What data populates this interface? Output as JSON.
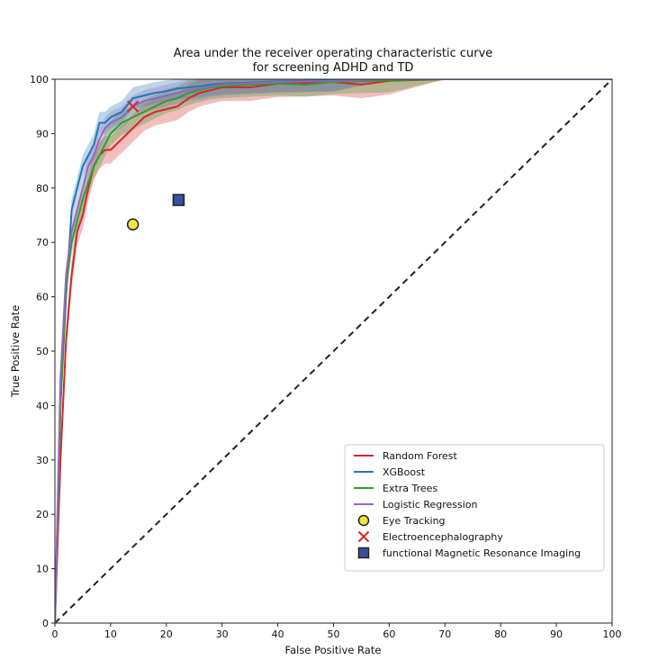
{
  "chart_data": {
    "type": "line",
    "title_line1": "Area under the receiver operating characteristic curve",
    "title_line2": "for screening ADHD and TD",
    "xlabel": "False Positive Rate",
    "ylabel": "True Positive Rate",
    "xlim": [
      0,
      100
    ],
    "ylim": [
      0,
      100
    ],
    "xticks": [
      "0",
      "10",
      "20",
      "30",
      "40",
      "50",
      "60",
      "70",
      "80",
      "90",
      "100"
    ],
    "yticks": [
      "0",
      "10",
      "20",
      "30",
      "40",
      "50",
      "60",
      "70",
      "80",
      "90",
      "100"
    ],
    "grid": false,
    "legend_position": "lower-right",
    "diagonal": {
      "x": [
        0,
        100
      ],
      "y": [
        0,
        100
      ],
      "color": "#222222",
      "style": "dashed"
    },
    "series": [
      {
        "name": "Random Forest",
        "color": "#d62728",
        "x": [
          0,
          1,
          2,
          3,
          4,
          5,
          6,
          7,
          8,
          9,
          10,
          12,
          14,
          16,
          18,
          20,
          22,
          24,
          26,
          28,
          30,
          35,
          40,
          50,
          55,
          60,
          70,
          80,
          100
        ],
        "y": [
          0,
          30,
          52,
          64,
          72,
          75,
          80,
          84,
          86,
          87,
          87,
          89,
          91,
          93,
          94,
          94.5,
          95,
          96.5,
          97.5,
          98,
          98.5,
          98.5,
          99.2,
          99.5,
          99,
          99.7,
          100,
          100,
          100
        ],
        "band": 2.5
      },
      {
        "name": "XGBoost",
        "color": "#1f77b4",
        "x": [
          0,
          1,
          2,
          3,
          4,
          5,
          6,
          7,
          8,
          9,
          10,
          12,
          14,
          16,
          18,
          20,
          22,
          24,
          26,
          28,
          30,
          35,
          40,
          50,
          60,
          70,
          80,
          100
        ],
        "y": [
          0,
          40,
          60,
          76,
          80,
          84,
          86,
          88,
          92,
          92,
          93,
          94,
          96.5,
          97,
          97.5,
          97.8,
          98.3,
          98.5,
          98.7,
          99,
          99.2,
          99.4,
          99.6,
          99.8,
          100,
          100,
          100,
          100
        ],
        "band": 2.0
      },
      {
        "name": "Extra Trees",
        "color": "#2ca02c",
        "x": [
          0,
          1,
          2,
          3,
          4,
          5,
          6,
          7,
          8,
          9,
          10,
          12,
          14,
          16,
          18,
          20,
          22,
          24,
          26,
          28,
          30,
          35,
          40,
          45,
          50,
          60,
          70,
          80,
          100
        ],
        "y": [
          0,
          40,
          62,
          70,
          74,
          78,
          81,
          84,
          86,
          88,
          90,
          92,
          93,
          94,
          95,
          96,
          96.5,
          97.5,
          98,
          98.5,
          98.7,
          99,
          99.2,
          99,
          99.5,
          99.8,
          100,
          100,
          100
        ],
        "band": 2.2
      },
      {
        "name": "Logistic Regression",
        "color": "#9467bd",
        "x": [
          0,
          1,
          2,
          3,
          4,
          5,
          6,
          7,
          8,
          9,
          10,
          12,
          14,
          16,
          18,
          20,
          22,
          24,
          26,
          28,
          30,
          35,
          40,
          50,
          60,
          70,
          80,
          90,
          100
        ],
        "y": [
          0,
          45,
          64,
          72,
          76,
          80,
          84,
          86,
          89,
          91,
          92,
          93,
          95,
          96,
          96.5,
          97,
          97.5,
          98,
          98.3,
          98.7,
          99,
          99.3,
          99.5,
          99.7,
          100,
          100,
          100,
          100,
          100
        ],
        "band": 2.0
      }
    ],
    "markers": [
      {
        "name": "Eye Tracking",
        "x": 14,
        "y": 73.3,
        "symbol": "circle",
        "fill": "#f0e442",
        "edge": "#222222"
      },
      {
        "name": "Electroencephalography",
        "x": 14,
        "y": 95,
        "symbol": "x",
        "fill": "#d62728",
        "edge": "#d62728"
      },
      {
        "name": "functional Magnetic Resonance Imaging",
        "x": 22.2,
        "y": 77.8,
        "symbol": "square",
        "fill": "#3b4fa0",
        "edge": "#222222"
      }
    ]
  }
}
